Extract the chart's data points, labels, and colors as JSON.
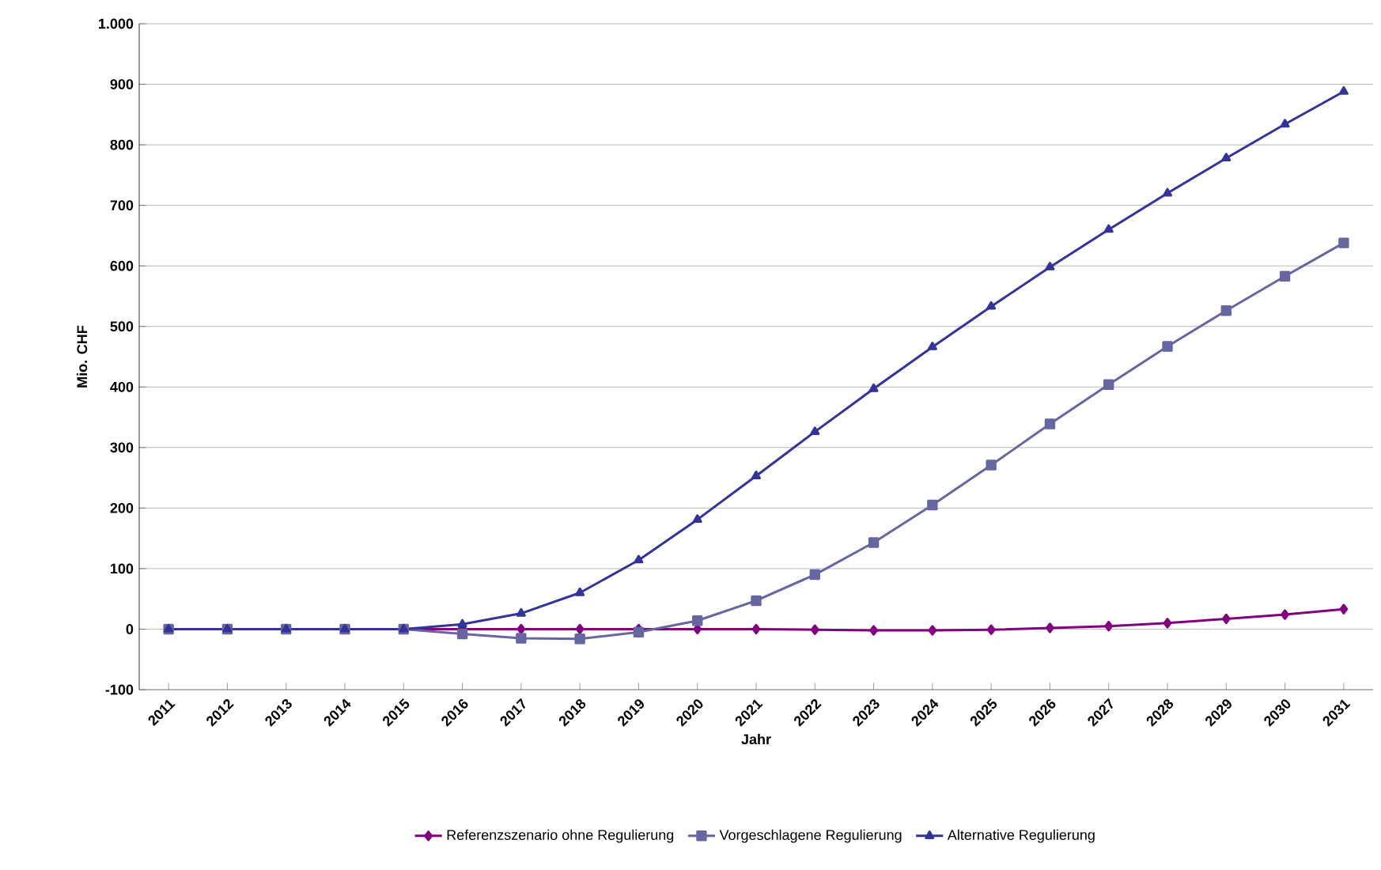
{
  "chart_data": {
    "type": "line",
    "xlabel": "Jahr",
    "ylabel": "Mio. CHF",
    "categories": [
      "2011",
      "2012",
      "2013",
      "2014",
      "2015",
      "2016",
      "2017",
      "2018",
      "2019",
      "2020",
      "2021",
      "2022",
      "2023",
      "2024",
      "2025",
      "2026",
      "2027",
      "2028",
      "2029",
      "2030",
      "2031"
    ],
    "series": [
      {
        "name": "Referenzszenario ohne Regulierung",
        "color": "#800080",
        "marker": "diamond",
        "values": [
          null,
          null,
          null,
          null,
          0,
          0,
          0,
          0,
          0,
          0,
          0,
          -1,
          -2,
          -2,
          -1,
          2,
          5,
          10,
          17,
          24,
          33
        ]
      },
      {
        "name": "Vorgeschlagene Regulierung",
        "color": "#6666a0",
        "marker": "square",
        "values": [
          0,
          0,
          0,
          0,
          0,
          -8,
          -15,
          -16,
          -5,
          14,
          47,
          90,
          143,
          205,
          271,
          339,
          404,
          467,
          526,
          583,
          638
        ]
      },
      {
        "name": "Alternative Regulierung",
        "color": "#333399",
        "marker": "triangle",
        "values": [
          0,
          0,
          0,
          0,
          0,
          8,
          26,
          60,
          114,
          181,
          253,
          326,
          397,
          466,
          533,
          598,
          660,
          720,
          778,
          834,
          888
        ]
      }
    ],
    "ylim": [
      -100,
      1000
    ],
    "yticks": [
      -100,
      0,
      100,
      200,
      300,
      400,
      500,
      600,
      700,
      800,
      900,
      {
        "value": 1000,
        "label": "1.000"
      }
    ],
    "grid": "y",
    "legend": "bottom",
    "line_style": "solid"
  }
}
